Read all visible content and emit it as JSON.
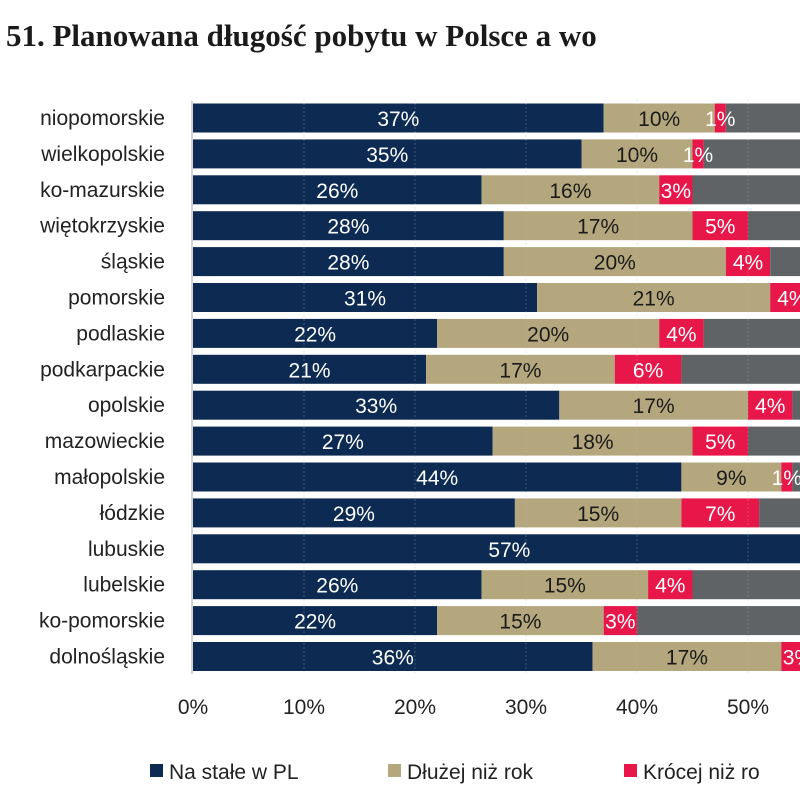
{
  "chart_data": {
    "type": "bar",
    "orientation": "horizontal",
    "stacked": true,
    "title": "51. Planowana długość pobytu w Polsce a wo",
    "categories": [
      "niopomorskie",
      "wielkopolskie",
      "ko-mazurskie",
      "więtokrzyskie",
      "śląskie",
      "pomorskie",
      "podlaskie",
      "podkarpackie",
      "opolskie",
      "mazowieckie",
      "małopolskie",
      "łódzkie",
      "lubuskie",
      "lubelskie",
      "ko-pomorskie",
      "dolnośląskie"
    ],
    "series": [
      {
        "name": "Na stałe w PL",
        "color": "#0d2b52",
        "label_color": "#ffffff",
        "values": [
          37,
          35,
          26,
          28,
          28,
          31,
          22,
          21,
          33,
          27,
          44,
          29,
          57,
          26,
          22,
          36
        ]
      },
      {
        "name": "Dłużej niż rok",
        "color": "#b5a77d",
        "label_color": "#1a1a1a",
        "values": [
          10,
          10,
          16,
          17,
          20,
          21,
          20,
          17,
          17,
          18,
          9,
          15,
          0,
          15,
          15,
          17
        ]
      },
      {
        "name": "Krócej niż ro",
        "color": "#e8174a",
        "label_color": "#ffffff",
        "values": [
          1,
          1,
          3,
          5,
          4,
          4,
          4,
          6,
          4,
          5,
          1,
          7,
          0,
          4,
          3,
          3
        ]
      },
      {
        "color": "#5f6366"
      }
    ],
    "xticks": [
      "0%",
      "10%",
      "20%",
      "30%",
      "40%",
      "50%"
    ],
    "xlim": [
      0,
      55
    ],
    "grid": "vertical dotted",
    "legend": "bottom"
  }
}
